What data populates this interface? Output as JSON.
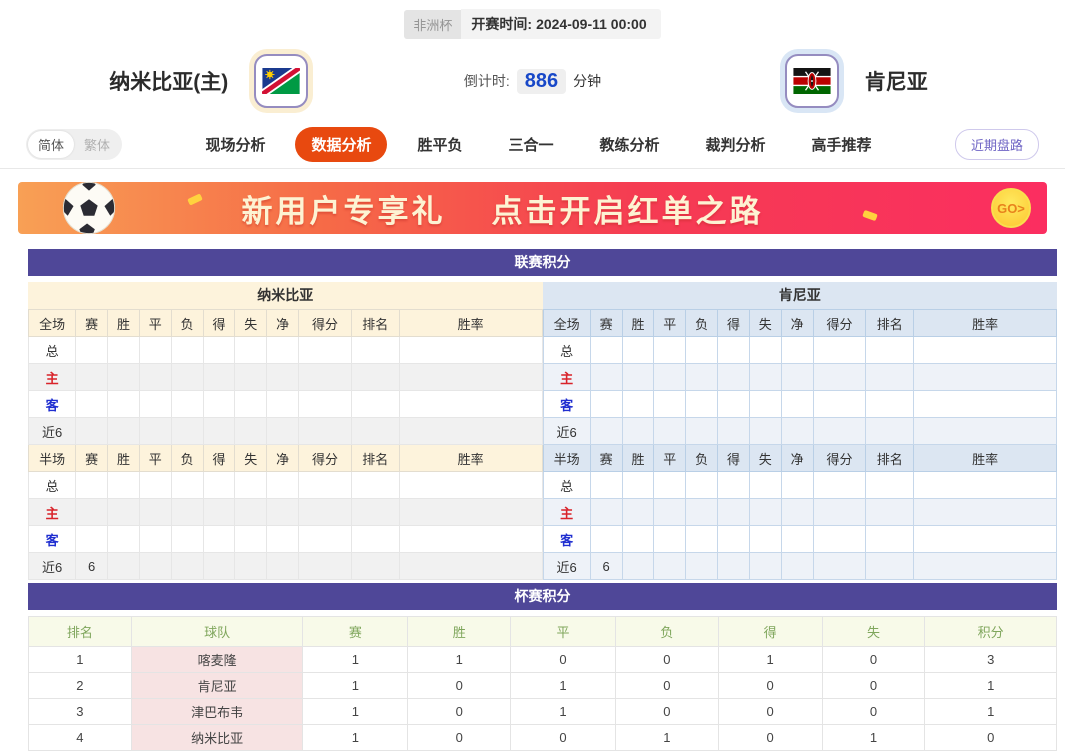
{
  "header": {
    "league_badge": "非洲杯",
    "kickoff_label": "开赛时间:",
    "kickoff_time": "2024-09-11 00:00",
    "home_team": "纳米比亚(主)",
    "away_team": "肯尼亚",
    "countdown_label": "倒计时:",
    "countdown_value": "886",
    "countdown_unit": "分钟"
  },
  "nav": {
    "lang_options": [
      "简体",
      "繁体"
    ],
    "active_lang": "简体",
    "tabs": [
      "现场分析",
      "数据分析",
      "胜平负",
      "三合一",
      "教练分析",
      "裁判分析",
      "高手推荐"
    ],
    "active_tab": "数据分析",
    "recent_button": "近期盘路"
  },
  "banner": {
    "title": "新用户专享礼",
    "subtitle": "点击开启红单之路",
    "go_label": "GO>"
  },
  "league_table": {
    "title": "联赛积分",
    "sides": [
      {
        "team": "纳米比亚",
        "sections": [
          {
            "label_col": "全场",
            "columns": [
              "赛",
              "胜",
              "平",
              "负",
              "得",
              "失",
              "净",
              "得分",
              "排名",
              "胜率"
            ],
            "rows": [
              {
                "label": "总",
                "type": "neutral",
                "cells": [
                  "",
                  "",
                  "",
                  "",
                  "",
                  "",
                  "",
                  "",
                  "",
                  ""
                ]
              },
              {
                "label": "主",
                "type": "home",
                "cells": [
                  "",
                  "",
                  "",
                  "",
                  "",
                  "",
                  "",
                  "",
                  "",
                  ""
                ]
              },
              {
                "label": "客",
                "type": "away",
                "cells": [
                  "",
                  "",
                  "",
                  "",
                  "",
                  "",
                  "",
                  "",
                  "",
                  ""
                ]
              },
              {
                "label": "近6",
                "type": "neutral",
                "cells": [
                  "",
                  "",
                  "",
                  "",
                  "",
                  "",
                  "",
                  "",
                  "",
                  ""
                ]
              }
            ]
          },
          {
            "label_col": "半场",
            "columns": [
              "赛",
              "胜",
              "平",
              "负",
              "得",
              "失",
              "净",
              "得分",
              "排名",
              "胜率"
            ],
            "rows": [
              {
                "label": "总",
                "type": "neutral",
                "cells": [
                  "",
                  "",
                  "",
                  "",
                  "",
                  "",
                  "",
                  "",
                  "",
                  ""
                ]
              },
              {
                "label": "主",
                "type": "home",
                "cells": [
                  "",
                  "",
                  "",
                  "",
                  "",
                  "",
                  "",
                  "",
                  "",
                  ""
                ]
              },
              {
                "label": "客",
                "type": "away",
                "cells": [
                  "",
                  "",
                  "",
                  "",
                  "",
                  "",
                  "",
                  "",
                  "",
                  ""
                ]
              },
              {
                "label": "近6",
                "type": "neutral",
                "cells": [
                  "6",
                  "",
                  "",
                  "",
                  "",
                  "",
                  "",
                  "",
                  "",
                  ""
                ]
              }
            ]
          }
        ]
      },
      {
        "team": "肯尼亚",
        "sections": [
          {
            "label_col": "全场",
            "columns": [
              "赛",
              "胜",
              "平",
              "负",
              "得",
              "失",
              "净",
              "得分",
              "排名",
              "胜率"
            ],
            "rows": [
              {
                "label": "总",
                "type": "neutral",
                "cells": [
                  "",
                  "",
                  "",
                  "",
                  "",
                  "",
                  "",
                  "",
                  "",
                  ""
                ]
              },
              {
                "label": "主",
                "type": "home",
                "cells": [
                  "",
                  "",
                  "",
                  "",
                  "",
                  "",
                  "",
                  "",
                  "",
                  ""
                ]
              },
              {
                "label": "客",
                "type": "away",
                "cells": [
                  "",
                  "",
                  "",
                  "",
                  "",
                  "",
                  "",
                  "",
                  "",
                  ""
                ]
              },
              {
                "label": "近6",
                "type": "neutral",
                "cells": [
                  "",
                  "",
                  "",
                  "",
                  "",
                  "",
                  "",
                  "",
                  "",
                  ""
                ]
              }
            ]
          },
          {
            "label_col": "半场",
            "columns": [
              "赛",
              "胜",
              "平",
              "负",
              "得",
              "失",
              "净",
              "得分",
              "排名",
              "胜率"
            ],
            "rows": [
              {
                "label": "总",
                "type": "neutral",
                "cells": [
                  "",
                  "",
                  "",
                  "",
                  "",
                  "",
                  "",
                  "",
                  "",
                  ""
                ]
              },
              {
                "label": "主",
                "type": "home",
                "cells": [
                  "",
                  "",
                  "",
                  "",
                  "",
                  "",
                  "",
                  "",
                  "",
                  ""
                ]
              },
              {
                "label": "客",
                "type": "away",
                "cells": [
                  "",
                  "",
                  "",
                  "",
                  "",
                  "",
                  "",
                  "",
                  "",
                  ""
                ]
              },
              {
                "label": "近6",
                "type": "neutral",
                "cells": [
                  "6",
                  "",
                  "",
                  "",
                  "",
                  "",
                  "",
                  "",
                  "",
                  ""
                ]
              }
            ]
          }
        ]
      }
    ]
  },
  "cup_table": {
    "title": "杯赛积分",
    "columns": [
      "排名",
      "球队",
      "赛",
      "胜",
      "平",
      "负",
      "得",
      "失",
      "积分"
    ],
    "rows": [
      [
        "1",
        "喀麦隆",
        "1",
        "1",
        "0",
        "0",
        "1",
        "0",
        "3"
      ],
      [
        "2",
        "肯尼亚",
        "1",
        "0",
        "1",
        "0",
        "0",
        "0",
        "1"
      ],
      [
        "3",
        "津巴布韦",
        "1",
        "0",
        "1",
        "0",
        "0",
        "0",
        "1"
      ],
      [
        "4",
        "纳米比亚",
        "1",
        "0",
        "0",
        "1",
        "0",
        "1",
        "0"
      ]
    ]
  },
  "colors": {
    "accent_purple": "#4f4798",
    "active_tab_orange": "#e8490f",
    "home_header_cream": "#fdf3dc",
    "away_header_blue": "#dce6f2",
    "home_label_red": "#d9232a",
    "away_label_blue": "#1f2ed0",
    "countdown_blue": "#1848c8",
    "cup_header_green": "#7fa65c",
    "team_cell_pink": "#f7e3e3",
    "banner_gradient_left": "#f8a055",
    "banner_gradient_right": "#fb2e60"
  }
}
